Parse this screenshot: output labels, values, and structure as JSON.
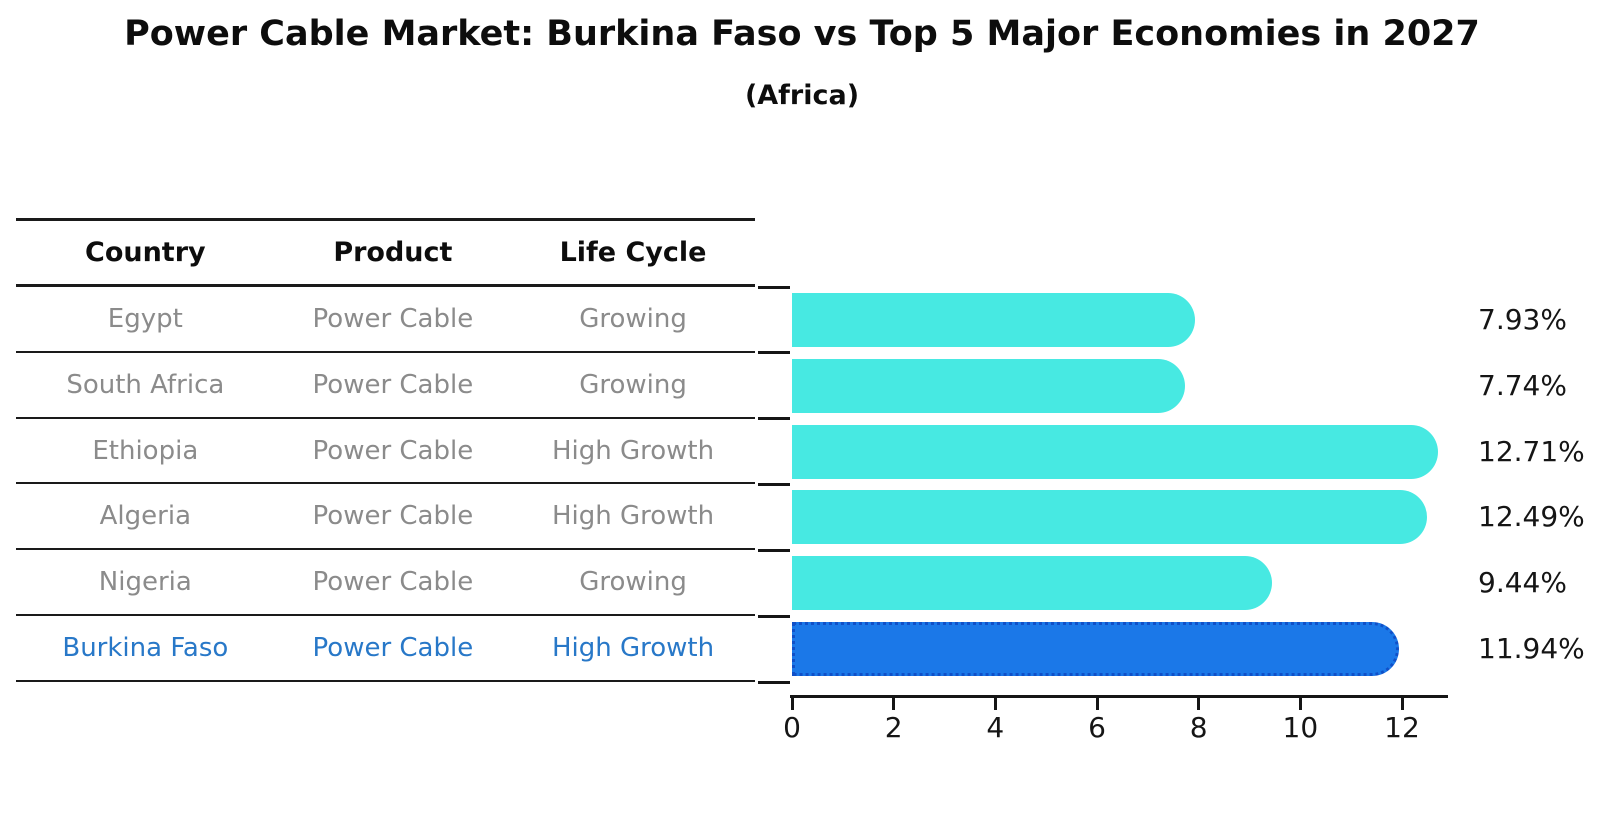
{
  "title": "Power Cable Market: Burkina Faso vs Top 5 Major Economies in 2027",
  "subtitle": "(Africa)",
  "table": {
    "headers": [
      "Country",
      "Product",
      "Life Cycle"
    ],
    "rows": [
      {
        "country": "Egypt",
        "product": "Power Cable",
        "life_cycle": "Growing",
        "highlight": false
      },
      {
        "country": "South Africa",
        "product": "Power Cable",
        "life_cycle": "Growing",
        "highlight": false
      },
      {
        "country": "Ethiopia",
        "product": "Power Cable",
        "life_cycle": "High Growth",
        "highlight": false
      },
      {
        "country": "Algeria",
        "product": "Power Cable",
        "life_cycle": "High Growth",
        "highlight": false
      },
      {
        "country": "Nigeria",
        "product": "Power Cable",
        "life_cycle": "Growing",
        "highlight": false
      },
      {
        "country": "Burkina Faso",
        "product": "Power Cable",
        "life_cycle": "High Growth",
        "highlight": true
      }
    ]
  },
  "chart_data": {
    "type": "bar",
    "orientation": "horizontal",
    "title": "Power Cable Market: Burkina Faso vs Top 5 Major Economies in 2027",
    "subtitle": "(Africa)",
    "categories": [
      "Egypt",
      "South Africa",
      "Ethiopia",
      "Algeria",
      "Nigeria",
      "Burkina Faso"
    ],
    "values": [
      7.93,
      7.74,
      12.71,
      12.49,
      9.44,
      11.94
    ],
    "value_labels": [
      "7.93%",
      "7.74%",
      "12.71%",
      "12.49%",
      "9.44%",
      "11.94%"
    ],
    "xticks": [
      "0",
      "2",
      "4",
      "6",
      "8",
      "10",
      "12"
    ],
    "xtick_values": [
      0,
      2,
      4,
      6,
      8,
      10,
      12
    ],
    "xlim": [
      0,
      12.9
    ],
    "grid": false,
    "legend": false,
    "bar_color": "#47e9e2",
    "highlight_index": 5,
    "highlight_color": "#1b78e8",
    "highlight_border_color": "#1050c8",
    "highlight_text_color": "#2878c8",
    "row_text_color": "#8b8b8b"
  }
}
